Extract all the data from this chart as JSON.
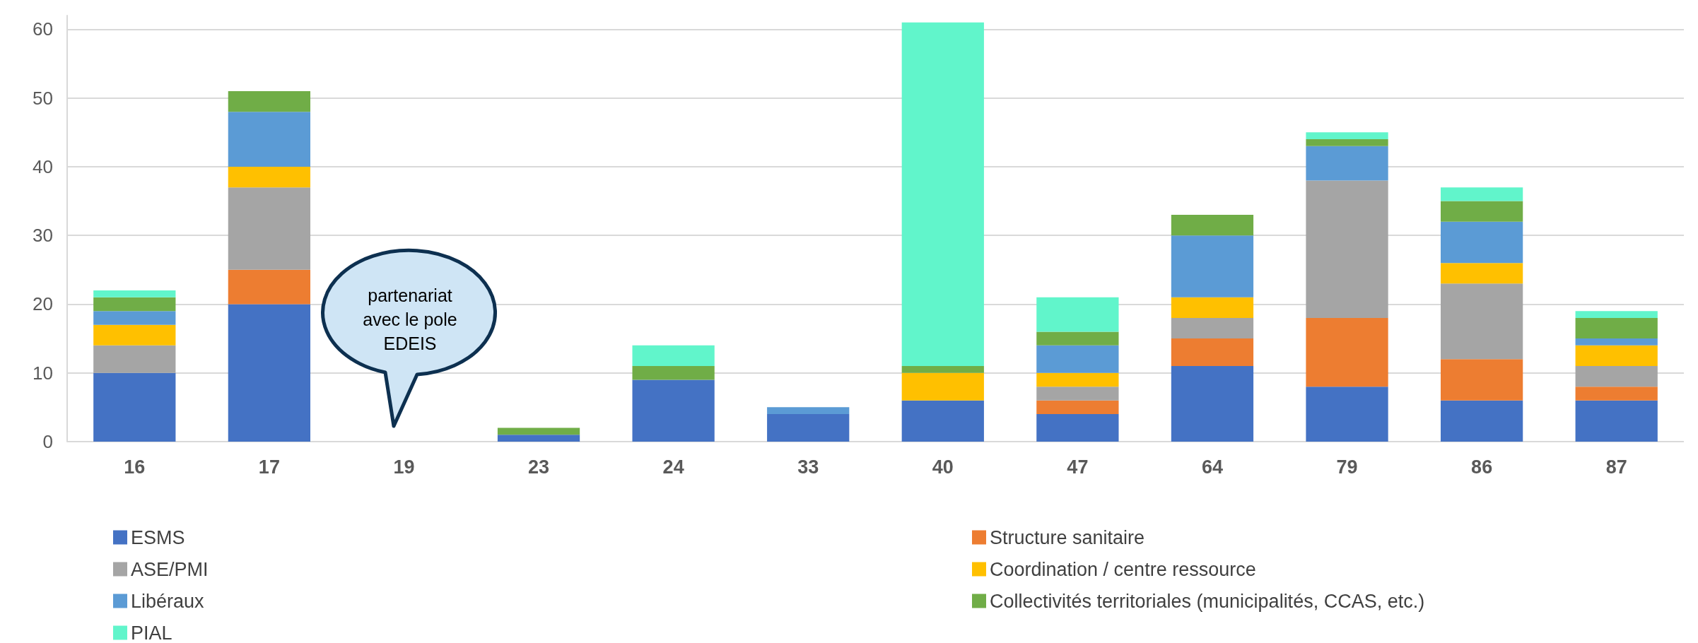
{
  "chart_data": {
    "type": "bar",
    "stacked": true,
    "categories": [
      "16",
      "17",
      "19",
      "23",
      "24",
      "33",
      "40",
      "47",
      "64",
      "79",
      "86",
      "87"
    ],
    "series": [
      {
        "name": "ESMS",
        "color": "#4472c4",
        "values": [
          10,
          20,
          0,
          1,
          9,
          4,
          6,
          4,
          11,
          8,
          6,
          6
        ]
      },
      {
        "name": "Structure sanitaire",
        "color": "#ed7d31",
        "values": [
          0,
          5,
          0,
          0,
          0,
          0,
          0,
          2,
          4,
          10,
          6,
          2
        ]
      },
      {
        "name": "ASE/PMI",
        "color": "#a5a5a5",
        "values": [
          4,
          12,
          0,
          0,
          0,
          0,
          0,
          2,
          3,
          20,
          11,
          3
        ]
      },
      {
        "name": "Coordination / centre ressource",
        "color": "#ffc000",
        "values": [
          3,
          3,
          0,
          0,
          0,
          0,
          4,
          2,
          3,
          0,
          3,
          3
        ]
      },
      {
        "name": "Libéraux",
        "color": "#5b9bd5",
        "values": [
          2,
          8,
          0,
          0,
          0,
          1,
          0,
          4,
          9,
          5,
          6,
          1
        ]
      },
      {
        "name": "Collectivités territoriales (municipalités, CCAS, etc.)",
        "color": "#70ad47",
        "values": [
          2,
          3,
          0,
          1,
          2,
          0,
          1,
          2,
          3,
          1,
          3,
          3
        ]
      },
      {
        "name": "PIAL",
        "color": "#61f5cb",
        "values": [
          1,
          0,
          0,
          0,
          3,
          0,
          50,
          5,
          0,
          1,
          2,
          1
        ]
      }
    ],
    "ylim": [
      0,
      62
    ],
    "yticks": [
      0,
      10,
      20,
      30,
      40,
      50,
      60
    ],
    "grid": "y",
    "legend": "bottom",
    "annotations": [
      "partenariat avec le pole EDEIS"
    ]
  }
}
